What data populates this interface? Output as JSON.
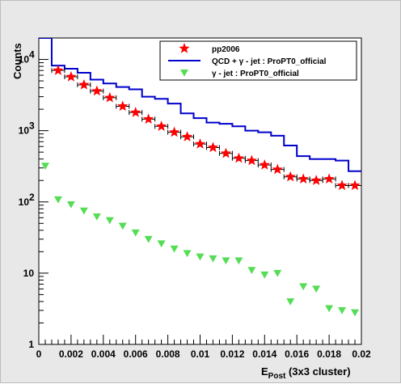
{
  "chart_data": {
    "type": "scatter",
    "title": "",
    "xlabel_main": "E",
    "xlabel_sub": "Post",
    "xlabel_rest": " (3x3 cluster)",
    "ylabel": "Counts",
    "xlim": [
      0,
      0.02
    ],
    "ylim": [
      1,
      20000
    ],
    "yscale": "log",
    "x_tick_labels": [
      "0",
      "0.002",
      "0.004",
      "0.006",
      "0.008",
      "0.01",
      "0.012",
      "0.014",
      "0.016",
      "0.018",
      "0.02"
    ],
    "y_tick_exponents": [
      {
        "base": "1",
        "exp": ""
      },
      {
        "base": "10",
        "exp": ""
      },
      {
        "base": "10",
        "exp": "2"
      },
      {
        "base": "10",
        "exp": "3"
      },
      {
        "base": "10",
        "exp": "4"
      }
    ],
    "legend_position": "top-right",
    "series": [
      {
        "name": "pp2006",
        "style": "star-markers-with-xerr",
        "color": "#ff0000",
        "bin_width": 0.0008,
        "x": [
          0.0012,
          0.002,
          0.0028,
          0.0036,
          0.0044,
          0.0052,
          0.006,
          0.0068,
          0.0076,
          0.0084,
          0.0092,
          0.01,
          0.0108,
          0.0116,
          0.0124,
          0.0132,
          0.014,
          0.0148,
          0.0156,
          0.0164,
          0.0172,
          0.018,
          0.0188,
          0.0196
        ],
        "y": [
          7000,
          5700,
          4400,
          3600,
          2900,
          2200,
          1800,
          1450,
          1150,
          950,
          820,
          650,
          580,
          480,
          410,
          380,
          330,
          285,
          225,
          210,
          200,
          210,
          170,
          170
        ]
      },
      {
        "name_parts": [
          "QCD + ",
          "γ",
          " - jet : ProPT0_official"
        ],
        "style": "step-line",
        "color": "#0000cc",
        "edges": [
          0,
          0.0008,
          0.0016,
          0.0024,
          0.0032,
          0.004,
          0.0048,
          0.0056,
          0.0064,
          0.0072,
          0.008,
          0.0088,
          0.0096,
          0.0104,
          0.0112,
          0.012,
          0.0128,
          0.0136,
          0.0144,
          0.0152,
          0.016,
          0.0168,
          0.0176,
          0.0184,
          0.0192,
          0.02
        ],
        "y": [
          20000,
          8200,
          7400,
          6500,
          5200,
          4600,
          4100,
          3800,
          3000,
          2800,
          2400,
          1750,
          1500,
          1300,
          1250,
          1150,
          1000,
          950,
          850,
          620,
          440,
          400,
          400,
          380,
          270
        ]
      },
      {
        "name_parts": [
          "γ",
          " - jet : ProPT0_official"
        ],
        "style": "triangle-down-markers",
        "color": "#55dd55",
        "x": [
          0.0004,
          0.0012,
          0.002,
          0.0028,
          0.0036,
          0.0044,
          0.0052,
          0.006,
          0.0068,
          0.0076,
          0.0084,
          0.0092,
          0.01,
          0.0108,
          0.0116,
          0.0124,
          0.0132,
          0.014,
          0.0148,
          0.0156,
          0.0164,
          0.0172,
          0.018,
          0.0188,
          0.0196
        ],
        "y": [
          320,
          108,
          92,
          75,
          62,
          55,
          46,
          37,
          30,
          26,
          22,
          19,
          17,
          16,
          15,
          15,
          11,
          9.5,
          10,
          4,
          6.5,
          6,
          3.2,
          3,
          2.8
        ]
      }
    ]
  }
}
